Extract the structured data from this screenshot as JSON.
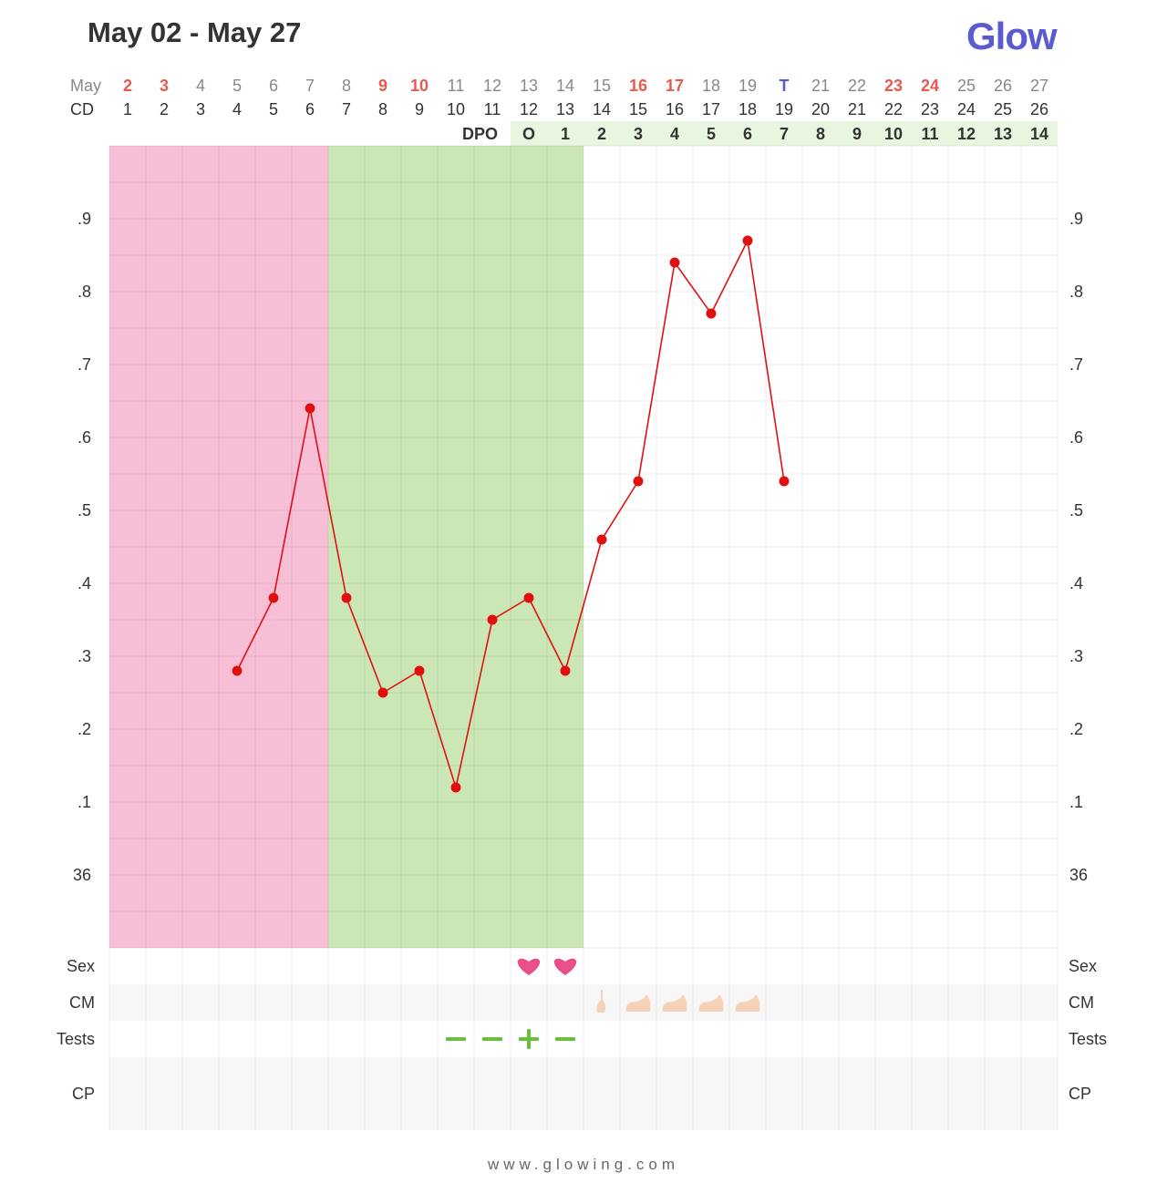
{
  "header": {
    "title": "May 02 - May 27",
    "logo": "Glow"
  },
  "footer": {
    "url": "www.glowing.com"
  },
  "colors": {
    "period": "#f7bfd6",
    "fertile": "#cce7b6",
    "dpo_band": "#e9f5de",
    "line": "#e01010",
    "highlight_date": "#e85a4f",
    "today": "#5b5bd0",
    "heart": "#e8508a",
    "test": "#6cbf3c",
    "cm": "#f6d2b8"
  },
  "chart_data": {
    "type": "line",
    "row_labels": {
      "month": "May",
      "cd": "CD",
      "dpo": "DPO"
    },
    "dates": [
      "2",
      "3",
      "4",
      "5",
      "6",
      "7",
      "8",
      "9",
      "10",
      "11",
      "12",
      "13",
      "14",
      "15",
      "16",
      "17",
      "18",
      "19",
      "T",
      "21",
      "22",
      "23",
      "24",
      "25",
      "26",
      "27"
    ],
    "highlighted_dates": [
      "2",
      "3",
      "9",
      "10",
      "16",
      "17",
      "23",
      "24"
    ],
    "today_label": "T",
    "cycle_days": [
      "1",
      "2",
      "3",
      "4",
      "5",
      "6",
      "7",
      "8",
      "9",
      "10",
      "11",
      "12",
      "13",
      "14",
      "15",
      "16",
      "17",
      "18",
      "19",
      "20",
      "21",
      "22",
      "23",
      "24",
      "25",
      "26"
    ],
    "dpo": [
      "O",
      "1",
      "2",
      "3",
      "4",
      "5",
      "6",
      "7",
      "8",
      "9",
      "10",
      "11",
      "12",
      "13",
      "14"
    ],
    "dpo_start_day": "13",
    "y_tick_labels": [
      "36",
      ".1",
      ".2",
      ".3",
      ".4",
      ".5",
      ".6",
      ".7",
      ".8",
      ".9"
    ],
    "ylim": [
      35.9,
      37.0
    ],
    "series": [
      {
        "x": [
          "5",
          "6",
          "7",
          "8",
          "9",
          "10",
          "11",
          "12",
          "13",
          "14",
          "15",
          "16",
          "17",
          "18",
          "19",
          "T"
        ],
        "values": [
          36.28,
          36.38,
          36.64,
          36.38,
          36.25,
          36.28,
          36.12,
          36.35,
          36.38,
          36.28,
          36.46,
          36.54,
          36.84,
          36.77,
          36.87,
          36.54
        ]
      }
    ],
    "period_days": [
      "2",
      "3",
      "4",
      "5",
      "6",
      "7"
    ],
    "fertile_days": [
      "8",
      "9",
      "10",
      "11",
      "12",
      "13",
      "14"
    ],
    "tracker_rows": {
      "sex": {
        "label": "Sex",
        "days": [
          "13",
          "14"
        ],
        "icon": "heart-icon"
      },
      "cm": {
        "label": "CM",
        "days": [
          "15",
          "16",
          "17",
          "18",
          "19"
        ],
        "icons": [
          "sticky-cm-icon",
          "creamy-cm-icon",
          "creamy-cm-icon",
          "creamy-cm-icon",
          "creamy-cm-icon"
        ]
      },
      "tests": {
        "label": "Tests",
        "days": [
          "11",
          "12",
          "13",
          "14"
        ],
        "results": [
          "−",
          "−",
          "+",
          "−"
        ]
      },
      "cp": {
        "label": "CP"
      }
    }
  }
}
